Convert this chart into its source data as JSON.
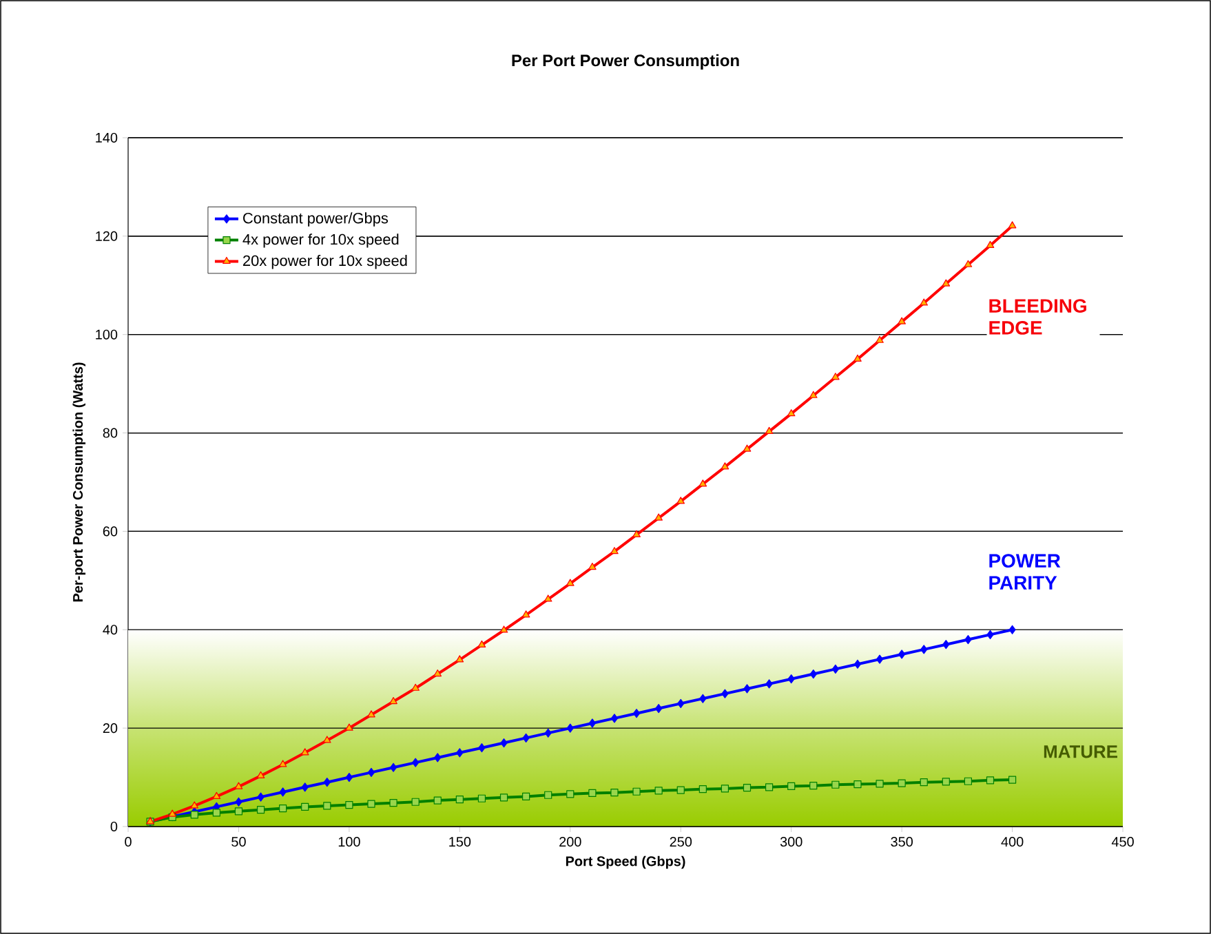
{
  "chart_data": {
    "type": "line",
    "title": "Per Port Power Consumption",
    "xlabel": "Port Speed (Gbps)",
    "ylabel": "Per-port Power Consumption (Watts)",
    "x": [
      10,
      20,
      30,
      40,
      50,
      60,
      70,
      80,
      90,
      100,
      110,
      120,
      130,
      140,
      150,
      160,
      170,
      180,
      190,
      200,
      210,
      220,
      230,
      240,
      250,
      260,
      270,
      280,
      290,
      300,
      310,
      320,
      330,
      340,
      350,
      360,
      370,
      380,
      390,
      400
    ],
    "series": [
      {
        "name": "Constant power/Gbps",
        "color": "#0000ff",
        "marker": "diamond",
        "values": [
          1,
          2,
          3,
          4,
          5,
          6,
          7,
          8,
          9,
          10,
          11,
          12,
          13,
          14,
          15,
          16,
          17,
          18,
          19,
          20,
          21,
          22,
          23,
          24,
          25,
          26,
          27,
          28,
          29,
          30,
          31,
          32,
          33,
          34,
          35,
          36,
          37,
          38,
          39,
          40
        ]
      },
      {
        "name": "4x power for 10x speed",
        "color": "#008000",
        "marker": "square",
        "values": [
          1.0,
          1.9,
          2.4,
          2.8,
          3.1,
          3.4,
          3.7,
          4.0,
          4.2,
          4.4,
          4.6,
          4.8,
          5.0,
          5.3,
          5.5,
          5.7,
          5.9,
          6.1,
          6.4,
          6.6,
          6.8,
          6.9,
          7.1,
          7.3,
          7.4,
          7.6,
          7.7,
          7.9,
          8.0,
          8.2,
          8.3,
          8.5,
          8.6,
          8.7,
          8.8,
          9.0,
          9.1,
          9.2,
          9.4,
          9.5
        ]
      },
      {
        "name": "20x power for 10x speed",
        "color": "#ff0000",
        "marker": "triangle",
        "values": [
          1.0,
          2.5,
          4.2,
          6.1,
          8.1,
          10.3,
          12.6,
          15.0,
          17.5,
          20.0,
          22.7,
          25.4,
          28.1,
          31.0,
          33.9,
          36.9,
          39.9,
          43.0,
          46.2,
          49.4,
          52.7,
          55.9,
          59.3,
          62.7,
          66.1,
          69.6,
          73.1,
          76.7,
          80.3,
          83.9,
          87.6,
          91.3,
          95.0,
          98.8,
          102.6,
          106.4,
          110.3,
          114.2,
          118.1,
          122.1
        ]
      }
    ],
    "xlim": [
      0,
      450
    ],
    "xticks": [
      0,
      50,
      100,
      150,
      200,
      250,
      300,
      350,
      400,
      450
    ],
    "ylim": [
      0,
      140
    ],
    "yticks": [
      0,
      20,
      40,
      60,
      80,
      100,
      120,
      140
    ],
    "grid": "y",
    "legend": "top left",
    "bands": [
      {
        "axis": "y",
        "from": 0,
        "to": 40,
        "label": "MATURE",
        "color": "#99cc00"
      }
    ],
    "annotations": [
      "BLEEDING EDGE",
      "POWER PARITY"
    ]
  }
}
